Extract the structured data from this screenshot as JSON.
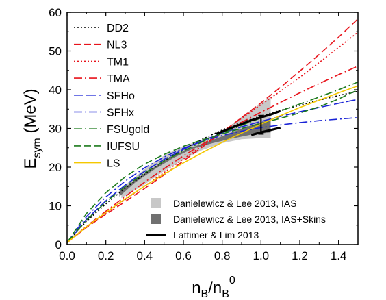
{
  "chart_data": {
    "type": "line",
    "xlabel": {
      "main": "n",
      "sub1": "B",
      "mid": "/n",
      "sub2": "B",
      "sup": "0"
    },
    "ylabel": {
      "main": "E",
      "sub": "sym",
      "tail": " (MeV)"
    },
    "xlim": [
      0,
      1.5
    ],
    "ylim": [
      0,
      60
    ],
    "xticks": [
      "0.0",
      "0.2",
      "0.4",
      "0.6",
      "0.8",
      "1.0",
      "1.2",
      "1.4"
    ],
    "yticks": [
      "0",
      "10",
      "20",
      "30",
      "40",
      "50",
      "60"
    ],
    "grid": false,
    "legend_placement": "top-left",
    "series": [
      {
        "name": "DD2",
        "color": "#000000",
        "dash": "dotted",
        "points": [
          [
            0,
            0.5
          ],
          [
            0.1,
            6
          ],
          [
            0.2,
            10.5
          ],
          [
            0.3,
            14.6
          ],
          [
            0.4,
            18.2
          ],
          [
            0.5,
            21.6
          ],
          [
            0.6,
            24.6
          ],
          [
            0.7,
            27.3
          ],
          [
            0.8,
            29.6
          ],
          [
            0.9,
            31.6
          ],
          [
            1.0,
            33.2
          ],
          [
            1.1,
            34.7
          ],
          [
            1.2,
            36.0
          ],
          [
            1.3,
            37.3
          ],
          [
            1.4,
            38.5
          ],
          [
            1.5,
            39.6
          ]
        ]
      },
      {
        "name": "NL3",
        "color": "#e8131b",
        "dash": "dash",
        "points": [
          [
            0,
            0.5
          ],
          [
            0.1,
            4.4
          ],
          [
            0.2,
            7.8
          ],
          [
            0.3,
            11.1
          ],
          [
            0.4,
            14.5
          ],
          [
            0.5,
            18
          ],
          [
            0.6,
            21.6
          ],
          [
            0.7,
            25.3
          ],
          [
            0.8,
            29
          ],
          [
            0.9,
            32.8
          ],
          [
            1.0,
            36.6
          ],
          [
            1.1,
            40.6
          ],
          [
            1.2,
            44.8
          ],
          [
            1.3,
            49.1
          ],
          [
            1.4,
            53.6
          ],
          [
            1.5,
            58.3
          ]
        ]
      },
      {
        "name": "TM1",
        "color": "#e8131b",
        "dash": "dotted",
        "points": [
          [
            0,
            0.5
          ],
          [
            0.1,
            4.5
          ],
          [
            0.2,
            8.1
          ],
          [
            0.3,
            11.6
          ],
          [
            0.4,
            15.1
          ],
          [
            0.5,
            18.6
          ],
          [
            0.6,
            22.1
          ],
          [
            0.7,
            25.6
          ],
          [
            0.8,
            29.1
          ],
          [
            0.9,
            32.6
          ],
          [
            1.0,
            36.1
          ],
          [
            1.1,
            39.6
          ],
          [
            1.2,
            43.2
          ],
          [
            1.3,
            47.0
          ],
          [
            1.4,
            50.9
          ],
          [
            1.5,
            54.9
          ]
        ]
      },
      {
        "name": "TMA",
        "color": "#e8131b",
        "dash": "dashdot",
        "points": [
          [
            0,
            0.5
          ],
          [
            0.1,
            4.7
          ],
          [
            0.2,
            8.6
          ],
          [
            0.3,
            12.4
          ],
          [
            0.4,
            16.1
          ],
          [
            0.5,
            19.6
          ],
          [
            0.6,
            22.9
          ],
          [
            0.7,
            26.0
          ],
          [
            0.8,
            28.9
          ],
          [
            0.9,
            31.6
          ],
          [
            1.0,
            34.2
          ],
          [
            1.1,
            36.7
          ],
          [
            1.2,
            39.2
          ],
          [
            1.3,
            41.6
          ],
          [
            1.4,
            43.9
          ],
          [
            1.5,
            46.1
          ]
        ]
      },
      {
        "name": "SFHo",
        "color": "#1a24d6",
        "dash": "longdash",
        "points": [
          [
            0,
            0.5
          ],
          [
            0.1,
            6.5
          ],
          [
            0.2,
            11.3
          ],
          [
            0.3,
            15.4
          ],
          [
            0.4,
            18.9
          ],
          [
            0.5,
            22.0
          ],
          [
            0.6,
            24.6
          ],
          [
            0.7,
            26.9
          ],
          [
            0.8,
            28.8
          ],
          [
            0.9,
            30.4
          ],
          [
            1.0,
            31.8
          ],
          [
            1.1,
            33.1
          ],
          [
            1.2,
            34.3
          ],
          [
            1.3,
            35.4
          ],
          [
            1.4,
            36.5
          ],
          [
            1.5,
            37.5
          ]
        ]
      },
      {
        "name": "SFHx",
        "color": "#1a24d6",
        "dash": "dashdot",
        "points": [
          [
            0,
            0.5
          ],
          [
            0.1,
            7.2
          ],
          [
            0.2,
            12.3
          ],
          [
            0.3,
            16.4
          ],
          [
            0.4,
            19.8
          ],
          [
            0.5,
            22.6
          ],
          [
            0.6,
            24.9
          ],
          [
            0.7,
            26.7
          ],
          [
            0.8,
            28.2
          ],
          [
            0.9,
            29.3
          ],
          [
            1.0,
            30.2
          ],
          [
            1.1,
            30.9
          ],
          [
            1.2,
            31.5
          ],
          [
            1.3,
            32.0
          ],
          [
            1.4,
            32.4
          ],
          [
            1.5,
            32.8
          ]
        ]
      },
      {
        "name": "FSUgold",
        "color": "#1c7a1c",
        "dash": "dashdot",
        "points": [
          [
            0,
            0.5
          ],
          [
            0.1,
            6.3
          ],
          [
            0.2,
            11.0
          ],
          [
            0.3,
            15.0
          ],
          [
            0.4,
            18.5
          ],
          [
            0.5,
            21.6
          ],
          [
            0.6,
            24.2
          ],
          [
            0.7,
            26.6
          ],
          [
            0.8,
            28.8
          ],
          [
            0.9,
            30.8
          ],
          [
            1.0,
            32.7
          ],
          [
            1.1,
            34.5
          ],
          [
            1.2,
            36.3
          ],
          [
            1.3,
            38.1
          ],
          [
            1.4,
            40.0
          ],
          [
            1.5,
            42.0
          ]
        ]
      },
      {
        "name": "IUFSU",
        "color": "#1c7a1c",
        "dash": "dash",
        "points": [
          [
            0,
            0.5
          ],
          [
            0.1,
            8.0
          ],
          [
            0.2,
            13.4
          ],
          [
            0.3,
            17.5
          ],
          [
            0.4,
            20.8
          ],
          [
            0.5,
            23.3
          ],
          [
            0.6,
            25.4
          ],
          [
            0.7,
            27.1
          ],
          [
            0.8,
            28.6
          ],
          [
            0.9,
            30.0
          ],
          [
            1.0,
            31.3
          ],
          [
            1.1,
            32.6
          ],
          [
            1.2,
            34.0
          ],
          [
            1.3,
            35.6
          ],
          [
            1.4,
            37.6
          ],
          [
            1.5,
            40.0
          ]
        ]
      },
      {
        "name": "LS",
        "color": "#f5c800",
        "dash": "solid",
        "points": [
          [
            0,
            0.5
          ],
          [
            0.1,
            4.6
          ],
          [
            0.2,
            8.3
          ],
          [
            0.3,
            11.8
          ],
          [
            0.4,
            15.1
          ],
          [
            0.5,
            18.2
          ],
          [
            0.6,
            21.1
          ],
          [
            0.7,
            23.8
          ],
          [
            0.8,
            26.4
          ],
          [
            0.9,
            28.8
          ],
          [
            1.0,
            31.1
          ],
          [
            1.1,
            33.3
          ],
          [
            1.2,
            35.4
          ],
          [
            1.3,
            37.3
          ],
          [
            1.4,
            39.2
          ],
          [
            1.5,
            41.0
          ]
        ]
      }
    ],
    "constraints": [
      {
        "name": "Danielewicz & Lee 2013, IAS",
        "color": "#c8c8c8",
        "upper": [
          [
            0.28,
            14.5
          ],
          [
            0.4,
            19.5
          ],
          [
            0.5,
            23
          ],
          [
            0.6,
            25.5
          ],
          [
            0.7,
            27
          ],
          [
            0.8,
            29
          ],
          [
            0.9,
            33
          ],
          [
            1.0,
            36.5
          ],
          [
            1.05,
            38.2
          ]
        ],
        "lower": [
          [
            1.05,
            27.5
          ],
          [
            1.0,
            27.5
          ],
          [
            0.9,
            27.2
          ],
          [
            0.8,
            26.2
          ],
          [
            0.7,
            24.5
          ],
          [
            0.6,
            22
          ],
          [
            0.5,
            19
          ],
          [
            0.4,
            15.5
          ],
          [
            0.28,
            12
          ]
        ]
      },
      {
        "name": "Danielewicz & Lee 2013, IAS+Skins",
        "color": "#707070",
        "upper": [
          [
            0.27,
            13.8
          ],
          [
            0.35,
            16.6
          ],
          [
            0.45,
            20
          ],
          [
            0.55,
            23
          ],
          [
            0.65,
            25.2
          ],
          [
            0.75,
            27
          ],
          [
            0.85,
            29
          ],
          [
            0.95,
            30.8
          ],
          [
            1.05,
            32.3
          ]
        ],
        "lower": [
          [
            1.05,
            29
          ],
          [
            0.95,
            28.4
          ],
          [
            0.85,
            27.4
          ],
          [
            0.75,
            26.2
          ],
          [
            0.65,
            24.8
          ],
          [
            0.55,
            22.4
          ],
          [
            0.45,
            19.4
          ],
          [
            0.35,
            16
          ],
          [
            0.27,
            12.4
          ]
        ]
      }
    ],
    "lattimer_lim": {
      "name": "Lattimer & Lim 2013",
      "color": "#000000",
      "band_upper": [
        [
          0.77,
          28.6
        ],
        [
          0.85,
          30.2
        ],
        [
          0.95,
          32.1
        ],
        [
          1.05,
          33.6
        ],
        [
          1.1,
          34.5
        ]
      ],
      "band_lower": [
        [
          0.95,
          28.3
        ],
        [
          1.0,
          29.0
        ],
        [
          1.05,
          29.6
        ],
        [
          1.1,
          30.2
        ]
      ],
      "errorbar": {
        "x": 1.0,
        "y_low": 28.6,
        "y_high": 33.3
      }
    }
  }
}
